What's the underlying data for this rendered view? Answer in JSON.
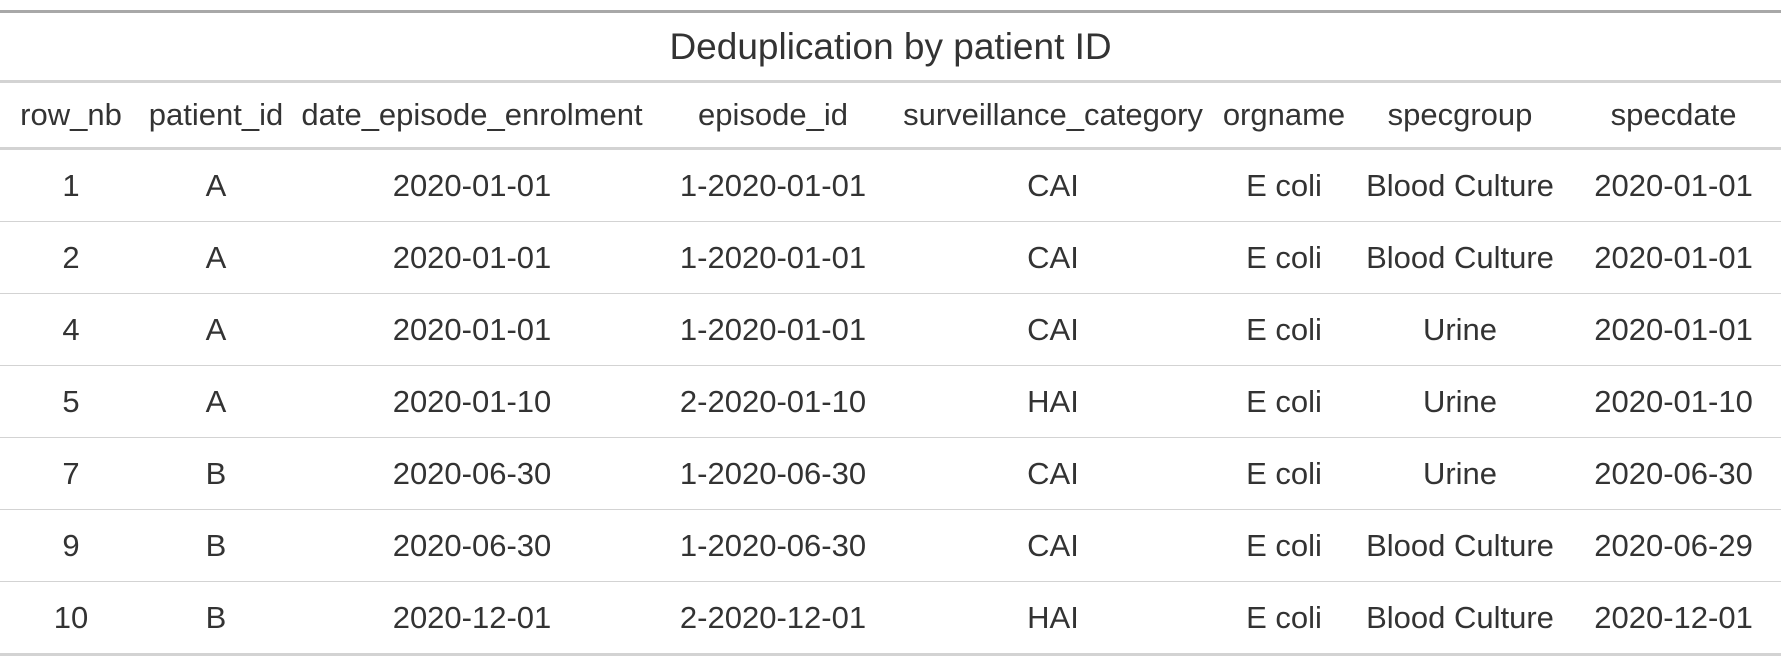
{
  "table": {
    "title": "Deduplication by patient ID",
    "columns": [
      "row_nb",
      "patient_id",
      "date_episode_enrolment",
      "episode_id",
      "surveillance_category",
      "orgname",
      "specgroup",
      "specdate"
    ],
    "rows": [
      [
        "1",
        "A",
        "2020-01-01",
        "1-2020-01-01",
        "CAI",
        "E coli",
        "Blood Culture",
        "2020-01-01"
      ],
      [
        "2",
        "A",
        "2020-01-01",
        "1-2020-01-01",
        "CAI",
        "E coli",
        "Blood Culture",
        "2020-01-01"
      ],
      [
        "4",
        "A",
        "2020-01-01",
        "1-2020-01-01",
        "CAI",
        "E coli",
        "Urine",
        "2020-01-01"
      ],
      [
        "5",
        "A",
        "2020-01-10",
        "2-2020-01-10",
        "HAI",
        "E coli",
        "Urine",
        "2020-01-10"
      ],
      [
        "7",
        "B",
        "2020-06-30",
        "1-2020-06-30",
        "CAI",
        "E coli",
        "Urine",
        "2020-06-30"
      ],
      [
        "9",
        "B",
        "2020-06-30",
        "1-2020-06-30",
        "CAI",
        "E coli",
        "Blood Culture",
        "2020-06-29"
      ],
      [
        "10",
        "B",
        "2020-12-01",
        "2-2020-12-01",
        "HAI",
        "E coli",
        "Blood Culture",
        "2020-12-01"
      ]
    ]
  }
}
